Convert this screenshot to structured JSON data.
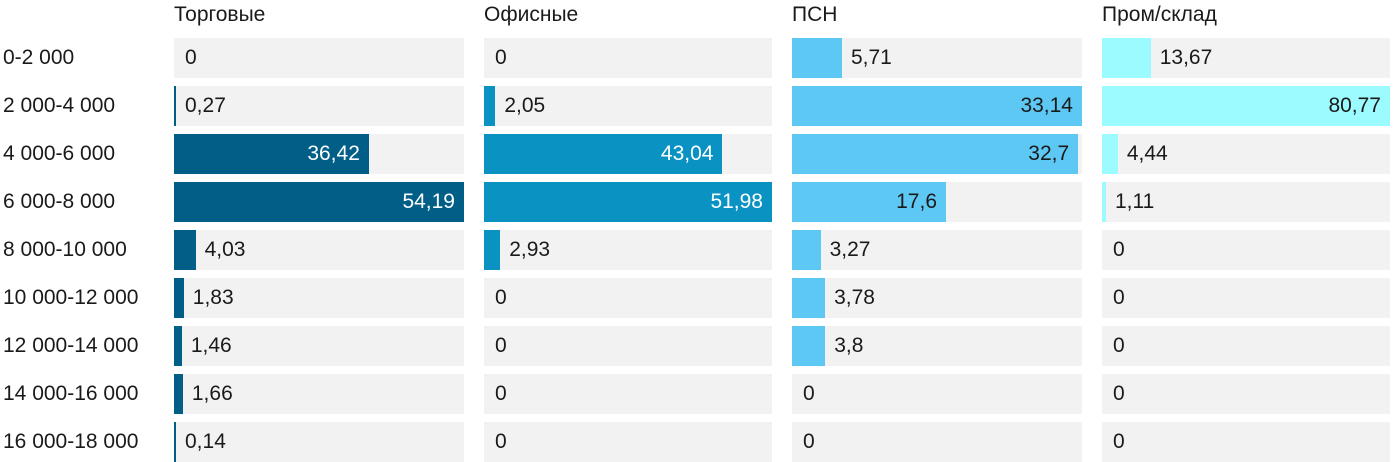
{
  "chart_data": {
    "type": "bar",
    "orientation": "horizontal",
    "layout": "small-multiples",
    "categories": [
      "0-2 000",
      "2 000-4 000",
      "4 000-6 000",
      "6 000-8 000",
      "8 000-10 000",
      "10 000-12 000",
      "12 000-14 000",
      "14 000-16 000",
      "16 000-18 000"
    ],
    "series": [
      {
        "name": "Торговые",
        "color": "#005e87",
        "values": [
          0,
          0.27,
          36.42,
          54.19,
          4.03,
          1.83,
          1.46,
          1.66,
          0.14
        ],
        "labels": [
          "0",
          "0,27",
          "36,42",
          "54,19",
          "4,03",
          "1,83",
          "1,46",
          "1,66",
          "0,14"
        ]
      },
      {
        "name": "Офисные",
        "color": "#0a93c2",
        "values": [
          0,
          2.05,
          43.04,
          51.98,
          2.93,
          0,
          0,
          0,
          0
        ],
        "labels": [
          "0",
          "2,05",
          "43,04",
          "51,98",
          "2,93",
          "0",
          "0",
          "0",
          "0"
        ]
      },
      {
        "name": "ПСН",
        "color": "#5ec8f5",
        "values": [
          5.71,
          33.14,
          32.7,
          17.6,
          3.27,
          3.78,
          3.8,
          0,
          0
        ],
        "labels": [
          "5,71",
          "33,14",
          "32,7",
          "17,6",
          "3,27",
          "3,78",
          "3,8",
          "0",
          "0"
        ]
      },
      {
        "name": "Пром/склад",
        "color": "#9cfbff",
        "values": [
          13.67,
          80.77,
          4.44,
          1.11,
          0,
          0,
          0,
          0,
          0
        ],
        "labels": [
          "13,67",
          "80,77",
          "4,44",
          "1,11",
          "0",
          "0",
          "0",
          "0",
          "0"
        ]
      }
    ],
    "title": "",
    "xlabel": "",
    "ylabel": "",
    "grid": false,
    "legend": "none"
  }
}
